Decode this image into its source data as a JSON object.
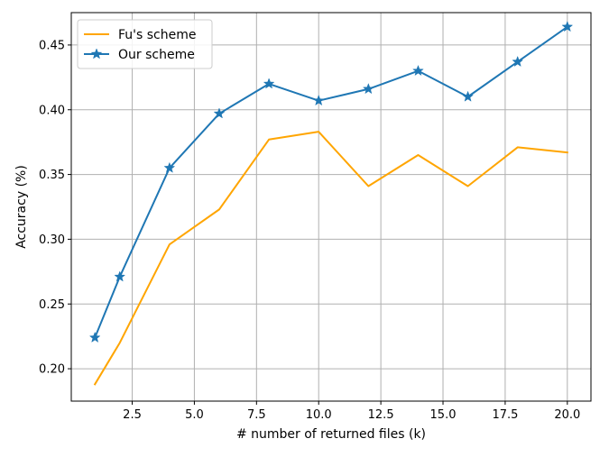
{
  "chart_data": {
    "type": "line",
    "xlabel": "# number of returned files (k)",
    "ylabel": "Accuracy (%)",
    "xlim": [
      0.05,
      20.95
    ],
    "ylim": [
      0.175,
      0.475
    ],
    "xticks": [
      2.5,
      5.0,
      7.5,
      10.0,
      12.5,
      15.0,
      17.5,
      20.0
    ],
    "xtick_labels": [
      "2.5",
      "5.0",
      "7.5",
      "10.0",
      "12.5",
      "15.0",
      "17.5",
      "20.0"
    ],
    "yticks": [
      0.2,
      0.25,
      0.3,
      0.35,
      0.4,
      0.45
    ],
    "ytick_labels": [
      "0.20",
      "0.25",
      "0.30",
      "0.35",
      "0.40",
      "0.45"
    ],
    "grid": true,
    "legend_position": "top-left",
    "series": [
      {
        "name": "Fu's scheme",
        "color": "#ffa500",
        "marker": "none",
        "x": [
          1,
          2,
          4,
          6,
          8,
          10,
          12,
          14,
          16,
          18,
          20
        ],
        "values": [
          0.188,
          0.22,
          0.296,
          0.323,
          0.377,
          0.383,
          0.341,
          0.365,
          0.341,
          0.371,
          0.367
        ]
      },
      {
        "name": "Our scheme",
        "color": "#1f77b4",
        "marker": "star",
        "x": [
          1,
          2,
          4,
          6,
          8,
          10,
          12,
          14,
          16,
          18,
          20
        ],
        "values": [
          0.224,
          0.271,
          0.355,
          0.397,
          0.42,
          0.407,
          0.416,
          0.43,
          0.41,
          0.437,
          0.464
        ]
      }
    ]
  }
}
